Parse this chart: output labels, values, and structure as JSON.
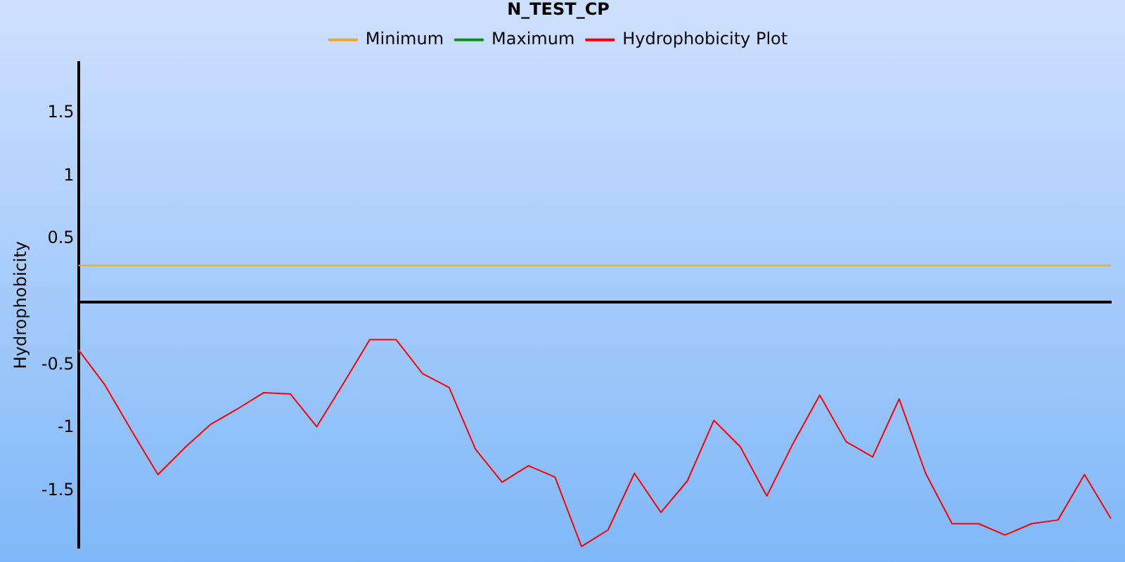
{
  "chart_data": {
    "type": "line",
    "title": "N_TEST_CP",
    "ylabel": "Hydrophobicity",
    "categories": [
      null,
      null,
      null,
      null,
      null,
      null,
      null,
      null,
      null,
      null,
      null,
      null,
      null,
      null,
      null,
      null,
      null,
      null,
      null,
      null,
      null,
      null,
      null,
      null,
      null,
      null,
      null,
      null,
      null,
      null,
      null,
      null,
      null,
      null,
      null,
      null,
      null,
      null,
      null,
      null
    ],
    "series": [
      {
        "name": "Minimum",
        "color": "#f0a820",
        "values": [
          0.29,
          0.29,
          0.29,
          0.29,
          0.29,
          0.29,
          0.29,
          0.29,
          0.29,
          0.29,
          0.29,
          0.29,
          0.29,
          0.29,
          0.29,
          0.29,
          0.29,
          0.29,
          0.29,
          0.29,
          0.29,
          0.29,
          0.29,
          0.29,
          0.29,
          0.29,
          0.29,
          0.29,
          0.29,
          0.29,
          0.29,
          0.29,
          0.29,
          0.29,
          0.29,
          0.29,
          0.29,
          0.29,
          0.29,
          0.29
        ]
      },
      {
        "name": "Maximum",
        "color": "#109010",
        "values": [
          null,
          null,
          null,
          null,
          null,
          null,
          null,
          null,
          null,
          null,
          null,
          null,
          null,
          null,
          null,
          null,
          null,
          null,
          null,
          null,
          null,
          null,
          null,
          null,
          null,
          null,
          null,
          null,
          null,
          null,
          null,
          null,
          null,
          null,
          null,
          null,
          null,
          null,
          null,
          null
        ]
      },
      {
        "name": "Hydrophobicity Plot",
        "color": "#ff0000",
        "values": [
          -0.38,
          -0.66,
          -1.02,
          -1.37,
          -1.16,
          -0.97,
          -0.85,
          -0.72,
          -0.73,
          -0.99,
          -0.65,
          -0.3,
          -0.3,
          -0.57,
          -0.68,
          -1.17,
          -1.43,
          -1.3,
          -1.39,
          -1.94,
          -1.81,
          -1.36,
          -1.67,
          -1.42,
          -0.94,
          -1.15,
          -1.54,
          -1.12,
          -0.74,
          -1.11,
          -1.23,
          -0.77,
          -1.36,
          -1.76,
          -1.76,
          -1.85,
          -1.76,
          -1.73,
          -1.37,
          -1.72
        ]
      }
    ],
    "ylim": [
      -1.95,
      1.9
    ],
    "yticks": [
      -1.5,
      -1,
      -0.5,
      0.5,
      1,
      1.5
    ],
    "tick_labels": "y",
    "grid": false,
    "legend": "top",
    "marker": "none",
    "line_style": "solid"
  }
}
